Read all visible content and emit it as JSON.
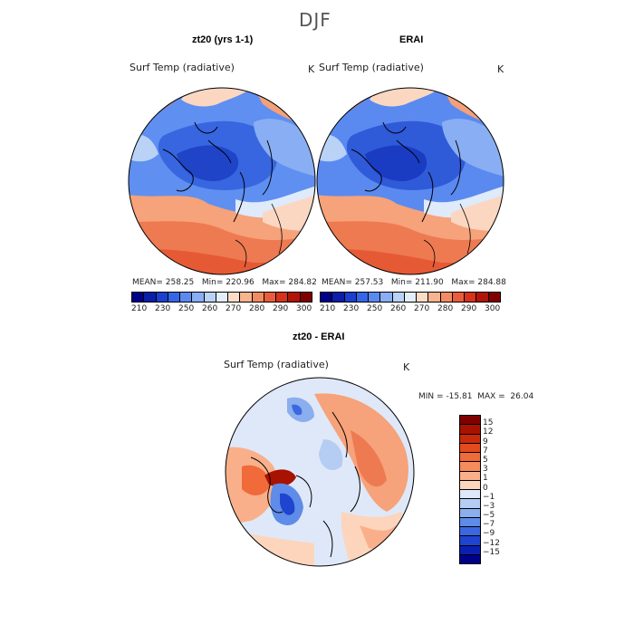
{
  "figure": {
    "title": "DJF"
  },
  "panels": [
    {
      "title": "zt20 (yrs 1-1)",
      "variable_label": "Surf Temp (radiative)",
      "units": "K",
      "stats": {
        "mean_label": "MEAN=",
        "mean": "258.25",
        "min_label": "Min=",
        "min": "220.96",
        "max_label": "Max=",
        "max": "284.82"
      }
    },
    {
      "title": "ERAI",
      "variable_label": "Surf Temp (radiative)",
      "units": "K",
      "stats": {
        "mean_label": "MEAN=",
        "mean": "257.53",
        "min_label": "Min=",
        "min": "211.90",
        "max_label": "Max=",
        "max": "284.88"
      }
    }
  ],
  "abs_colorbar": {
    "tick_labels": [
      "210",
      "230",
      "250",
      "260",
      "270",
      "280",
      "290",
      "300"
    ],
    "colors": [
      "#00008b",
      "#0a1ea8",
      "#1c3fce",
      "#3566e6",
      "#5a8af0",
      "#89aef3",
      "#b9d2f6",
      "#e2eef9",
      "#fbdcc6",
      "#f8b48e",
      "#f38b62",
      "#e95d3c",
      "#d5331c",
      "#b01508",
      "#800000"
    ]
  },
  "diff_panel": {
    "title": "zt20 - ERAI",
    "variable_label": "Surf Temp (radiative)",
    "units": "K",
    "stats": {
      "min_label": "MIN =",
      "min": "-15.81",
      "max_label": "MAX =",
      "max": "26.04"
    },
    "colorbar_tick_labels": [
      "15",
      "12",
      "9",
      "7",
      "5",
      "3",
      "1",
      "0",
      "−1",
      "−3",
      "−5",
      "−7",
      "−9",
      "−12",
      "−15"
    ],
    "colorbar_colors": [
      "#800000",
      "#a81200",
      "#c92a0a",
      "#e34a1c",
      "#f06a3a",
      "#f68b5c",
      "#f9b08a",
      "#fcd5bc",
      "#dfe8f8",
      "#b5cdf3",
      "#8aaeee",
      "#5e8ce8",
      "#3a68e0",
      "#1f44cf",
      "#0a20b0",
      "#00008b"
    ]
  },
  "icons": {
    "map_projection": "north-polar-stereographic-map"
  }
}
